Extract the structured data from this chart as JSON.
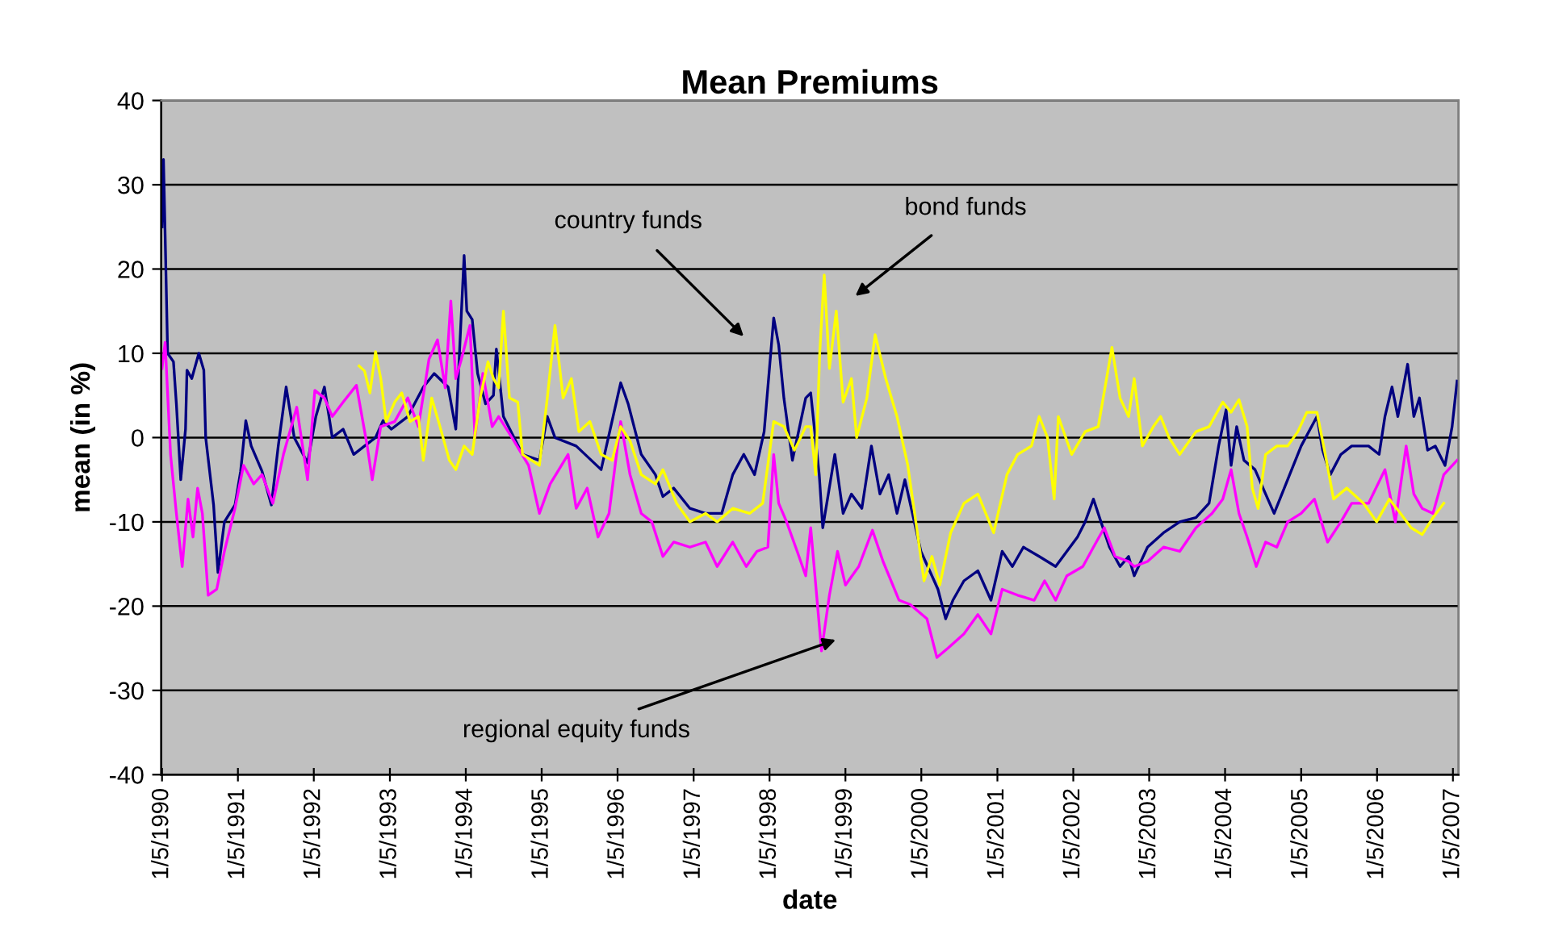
{
  "chart_data": {
    "type": "line",
    "title": "Mean Premiums",
    "xlabel": "date",
    "ylabel": "mean (in %)",
    "ylim": [
      -40,
      40
    ],
    "yticks": [
      -40,
      -30,
      -20,
      -10,
      0,
      10,
      20,
      30,
      40
    ],
    "xlim": [
      "1990-01-01",
      "2007-02-01"
    ],
    "xticks": [
      {
        "value": "1990-01-05",
        "label": "1/5/1990"
      },
      {
        "value": "1991-01-05",
        "label": "1/5/1991"
      },
      {
        "value": "1992-01-05",
        "label": "1/5/1992"
      },
      {
        "value": "1993-01-05",
        "label": "1/5/1993"
      },
      {
        "value": "1994-01-05",
        "label": "1/5/1994"
      },
      {
        "value": "1995-01-05",
        "label": "1/5/1995"
      },
      {
        "value": "1996-01-05",
        "label": "1/5/1996"
      },
      {
        "value": "1997-01-05",
        "label": "1/5/1997"
      },
      {
        "value": "1998-01-05",
        "label": "1/5/1998"
      },
      {
        "value": "1999-01-05",
        "label": "1/5/1999"
      },
      {
        "value": "2000-01-05",
        "label": "1/5/2000"
      },
      {
        "value": "2001-01-05",
        "label": "1/5/2001"
      },
      {
        "value": "2002-01-05",
        "label": "1/5/2002"
      },
      {
        "value": "2003-01-05",
        "label": "1/5/2003"
      },
      {
        "value": "2004-01-05",
        "label": "1/5/2004"
      },
      {
        "value": "2005-01-05",
        "label": "1/5/2005"
      },
      {
        "value": "2006-01-05",
        "label": "1/5/2006"
      },
      {
        "value": "2007-01-05",
        "label": "1/5/2007"
      }
    ],
    "grid": "y",
    "marker": "none",
    "line_style": "solid",
    "annotations": [
      "country funds",
      "bond funds",
      "regional equity funds"
    ],
    "series": [
      {
        "color": "#000080",
        "x": [
          "1990-01-05",
          "1990-01-12",
          "1990-01-20",
          "1990-02-01",
          "1990-03-01",
          "1990-03-15",
          "1990-04-05",
          "1990-04-28",
          "1990-05-05",
          "1990-05-28",
          "1990-07-01",
          "1990-07-25",
          "1990-08-03",
          "1990-09-10",
          "1990-10-01",
          "1990-11-01",
          "1990-12-22",
          "1991-01-18",
          "1991-02-12",
          "1991-03-10",
          "1991-05-01",
          "1991-06-15",
          "1991-07-18",
          "1991-08-25",
          "1991-10-03",
          "1991-12-06",
          "1992-01-15",
          "1992-02-25",
          "1992-04-03",
          "1992-05-25",
          "1992-07-15",
          "1992-09-05",
          "1992-10-28",
          "1992-12-03",
          "1993-01-12",
          "1993-04-01",
          "1993-06-15",
          "1993-08-06",
          "1993-10-12",
          "1993-11-18",
          "1993-12-28",
          "1994-01-10",
          "1994-02-05",
          "1994-03-03",
          "1994-04-10",
          "1994-05-18",
          "1994-06-01",
          "1994-07-05",
          "1994-10-05",
          "1994-12-25",
          "1995-02-01",
          "1995-03-10",
          "1995-06-20",
          "1995-10-18",
          "1996-01-20",
          "1996-02-25",
          "1996-04-28",
          "1996-07-05",
          "1996-08-10",
          "1996-10-01",
          "1996-12-18",
          "1997-03-03",
          "1997-05-20",
          "1997-07-12",
          "1997-09-03",
          "1997-10-25",
          "1997-12-10",
          "1998-01-25",
          "1998-02-18",
          "1998-03-15",
          "1998-04-25",
          "1998-06-28",
          "1998-07-22",
          "1998-09-01",
          "1998-09-18",
          "1998-11-15",
          "1998-12-25",
          "1999-02-03",
          "1999-03-25",
          "1999-05-10",
          "1999-06-20",
          "1999-08-01",
          "1999-09-10",
          "1999-10-18",
          "2000-01-03",
          "2000-02-25",
          "2000-03-25",
          "2000-05-01",
          "2000-06-05",
          "2000-07-28",
          "2000-10-03",
          "2000-12-05",
          "2001-01-28",
          "2001-03-18",
          "2001-05-10",
          "2001-07-25",
          "2001-10-12",
          "2002-01-25",
          "2002-03-03",
          "2002-04-12",
          "2002-05-18",
          "2002-06-28",
          "2002-08-18",
          "2002-09-28",
          "2002-10-25",
          "2002-12-28",
          "2003-03-15",
          "2003-06-01",
          "2003-08-18",
          "2003-10-20",
          "2003-12-05",
          "2004-01-10",
          "2004-02-03",
          "2004-03-01",
          "2004-04-05",
          "2004-05-28",
          "2004-07-18",
          "2004-08-28",
          "2004-11-01",
          "2005-01-05",
          "2005-03-22",
          "2005-04-18",
          "2005-05-25",
          "2005-07-15",
          "2005-09-05",
          "2005-11-25",
          "2006-01-15",
          "2006-02-12",
          "2006-03-18",
          "2006-04-15",
          "2006-06-01",
          "2006-07-01",
          "2006-07-28",
          "2006-09-05",
          "2006-10-12",
          "2006-11-28",
          "2007-01-01",
          "2007-01-25"
        ],
        "values": [
          25,
          33,
          24,
          10,
          9,
          4,
          -5,
          1,
          8,
          7,
          10,
          8,
          0,
          -8,
          -16,
          -10,
          -8,
          -4,
          2,
          -1,
          -4,
          -8,
          -1,
          6,
          0,
          -3,
          2.5,
          6,
          0,
          1,
          -2,
          -1,
          0,
          2,
          1,
          2.5,
          6,
          7.6,
          6,
          1,
          21.6,
          15,
          14,
          7.6,
          4,
          5,
          10.5,
          2.5,
          -2,
          -2.7,
          2.5,
          0,
          -1,
          -3.8,
          6.5,
          4,
          -2,
          -4.4,
          -7,
          -6,
          -8.4,
          -9,
          -9,
          -4.4,
          -2,
          -4.4,
          0.7,
          14.2,
          11,
          4.7,
          -2.7,
          4.7,
          5.3,
          -4.4,
          -10.7,
          -2,
          -9,
          -6.7,
          -8.4,
          -1,
          -6.7,
          -4.4,
          -9,
          -5,
          -13.5,
          -16.4,
          -18,
          -21.5,
          -19.3,
          -17,
          -15.8,
          -19.3,
          -13.5,
          -15.3,
          -13,
          -14.1,
          -15.3,
          -11.8,
          -10,
          -7.3,
          -10,
          -13,
          -15.3,
          -14.1,
          -16.4,
          -13,
          -11.3,
          -10,
          -9.5,
          -7.8,
          -1,
          3.3,
          -3.3,
          1.3,
          -2.7,
          -3.8,
          -6.7,
          -9,
          -5,
          -1,
          2.5,
          -1.5,
          -4.4,
          -2,
          -1,
          -1,
          -2,
          2.5,
          6,
          2.5,
          8.7,
          2.5,
          4.7,
          -1.5,
          -1,
          -3.3,
          1.3,
          6.7
        ]
      },
      {
        "color": "#ff00ff",
        "x": [
          "1990-01-05",
          "1990-01-20",
          "1990-02-15",
          "1990-03-15",
          "1990-04-12",
          "1990-05-10",
          "1990-06-03",
          "1990-06-25",
          "1990-07-18",
          "1990-08-15",
          "1990-09-25",
          "1990-11-01",
          "1990-12-22",
          "1991-02-01",
          "1991-03-22",
          "1991-05-01",
          "1991-06-22",
          "1991-08-12",
          "1991-10-15",
          "1991-12-06",
          "1992-01-10",
          "1992-02-25",
          "1992-04-03",
          "1992-05-25",
          "1992-07-28",
          "1992-09-18",
          "1992-10-12",
          "1992-11-22",
          "1993-01-28",
          "1993-04-01",
          "1993-05-22",
          "1993-07-12",
          "1993-08-22",
          "1993-09-28",
          "1993-10-25",
          "1993-11-18",
          "1993-12-15",
          "1994-01-25",
          "1994-02-18",
          "1994-03-28",
          "1994-05-12",
          "1994-06-12",
          "1994-08-15",
          "1994-11-03",
          "1994-12-25",
          "1995-02-15",
          "1995-05-12",
          "1995-06-20",
          "1995-08-12",
          "1995-10-03",
          "1995-11-25",
          "1996-01-20",
          "1996-03-05",
          "1996-04-28",
          "1996-06-18",
          "1996-08-10",
          "1996-10-01",
          "1996-12-18",
          "1997-03-03",
          "1997-04-28",
          "1997-07-12",
          "1997-09-15",
          "1997-11-05",
          "1997-12-28",
          "1998-01-25",
          "1998-02-18",
          "1998-03-28",
          "1998-05-18",
          "1998-06-28",
          "1998-07-22",
          "1998-09-12",
          "1998-10-20",
          "1998-11-28",
          "1999-01-05",
          "1999-03-10",
          "1999-05-15",
          "1999-07-05",
          "1999-09-20",
          "1999-11-12",
          "2000-02-01",
          "2000-03-20",
          "2000-05-12",
          "2000-07-28",
          "2000-10-03",
          "2000-12-05",
          "2001-01-28",
          "2001-04-12",
          "2001-07-01",
          "2001-08-20",
          "2001-10-12",
          "2001-12-05",
          "2002-02-20",
          "2002-04-12",
          "2002-06-03",
          "2002-07-25",
          "2002-09-28",
          "2002-10-25",
          "2002-12-28",
          "2003-03-15",
          "2003-06-01",
          "2003-08-18",
          "2003-11-03",
          "2003-12-25",
          "2004-02-03",
          "2004-03-12",
          "2004-04-20",
          "2004-06-03",
          "2004-07-18",
          "2004-09-10",
          "2004-11-01",
          "2005-01-05",
          "2005-03-10",
          "2005-05-12",
          "2005-07-15",
          "2005-09-05",
          "2005-11-25",
          "2006-02-12",
          "2006-04-03",
          "2006-05-25",
          "2006-07-01",
          "2006-08-10",
          "2006-10-01",
          "2006-11-22",
          "2007-01-25"
        ],
        "values": [
          8.2,
          11.3,
          -2,
          -9,
          -15.3,
          -7.3,
          -11.8,
          -6,
          -9,
          -18.7,
          -18,
          -13.5,
          -8.4,
          -3.3,
          -5.5,
          -4.4,
          -7.8,
          -2,
          3.6,
          -5,
          5.6,
          4.7,
          2.5,
          4.2,
          6.2,
          -1,
          -5,
          1.3,
          1.9,
          4.7,
          1.3,
          9.3,
          11.6,
          5.9,
          16.2,
          7,
          9.3,
          13.3,
          0,
          7.6,
          1.3,
          2.5,
          0,
          -3.3,
          -9,
          -5.5,
          -2,
          -8.4,
          -6,
          -11.8,
          -9,
          1.9,
          -4.4,
          -9,
          -10,
          -14.1,
          -12.4,
          -13,
          -12.4,
          -15.3,
          -12.4,
          -15.3,
          -13.5,
          -13,
          -2,
          -7.8,
          -10,
          -13.5,
          -16.4,
          -10.7,
          -25.3,
          -18.7,
          -13.5,
          -17.5,
          -15.3,
          -11,
          -14.7,
          -19.3,
          -19.8,
          -21.5,
          -26.1,
          -25,
          -23.3,
          -21,
          -23.3,
          -18,
          -18.7,
          -19.3,
          -17,
          -19.3,
          -16.4,
          -15.3,
          -13,
          -10.7,
          -14.1,
          -14.7,
          -15.3,
          -14.7,
          -13,
          -13.5,
          -10.7,
          -9,
          -7.3,
          -3.8,
          -9,
          -11.8,
          -15.3,
          -12.4,
          -13,
          -10,
          -9,
          -7.3,
          -12.4,
          -10,
          -7.8,
          -7.8,
          -3.8,
          -10,
          -1,
          -6.7,
          -8.4,
          -9,
          -4.4,
          -2.7
        ]
      },
      {
        "color": "#ffff00",
        "x": [
          "1992-08-10",
          "1992-09-05",
          "1992-10-01",
          "1992-10-28",
          "1992-11-22",
          "1992-12-18",
          "1993-01-28",
          "1993-03-03",
          "1993-04-12",
          "1993-05-22",
          "1993-06-15",
          "1993-07-25",
          "1993-09-03",
          "1993-10-18",
          "1993-11-18",
          "1993-12-28",
          "1994-02-05",
          "1994-03-15",
          "1994-04-22",
          "1994-05-18",
          "1994-06-12",
          "1994-07-05",
          "1994-08-03",
          "1994-09-12",
          "1994-10-05",
          "1994-12-25",
          "1995-02-01",
          "1995-03-10",
          "1995-04-18",
          "1995-05-28",
          "1995-07-03",
          "1995-08-25",
          "1995-10-18",
          "1995-12-10",
          "1996-01-20",
          "1996-03-05",
          "1996-04-28",
          "1996-07-05",
          "1996-08-10",
          "1996-10-15",
          "1996-12-18",
          "1997-03-03",
          "1997-04-28",
          "1997-07-12",
          "1997-10-01",
          "1997-12-03",
          "1998-01-25",
          "1998-03-15",
          "1998-05-05",
          "1998-06-28",
          "1998-07-22",
          "1998-08-15",
          "1998-09-03",
          "1998-09-25",
          "1998-10-20",
          "1998-11-22",
          "1998-12-25",
          "1999-02-03",
          "1999-02-28",
          "1999-04-18",
          "1999-05-28",
          "1999-07-18",
          "1999-09-10",
          "1999-11-01",
          "1999-12-20",
          "2000-01-18",
          "2000-02-25",
          "2000-04-03",
          "2000-05-25",
          "2000-07-28",
          "2000-10-03",
          "2000-12-18",
          "2001-02-20",
          "2001-04-12",
          "2001-06-18",
          "2001-07-25",
          "2001-09-03",
          "2001-10-05",
          "2001-10-25",
          "2001-12-28",
          "2002-03-03",
          "2002-05-05",
          "2002-07-10",
          "2002-08-18",
          "2002-09-28",
          "2002-10-25",
          "2002-12-03",
          "2003-01-25",
          "2003-03-01",
          "2003-04-10",
          "2003-06-01",
          "2003-08-18",
          "2003-10-20",
          "2003-12-25",
          "2004-02-03",
          "2004-03-12",
          "2004-04-20",
          "2004-05-15",
          "2004-06-12",
          "2004-07-18",
          "2004-09-10",
          "2004-11-01",
          "2004-12-20",
          "2005-02-01",
          "2005-03-22",
          "2005-05-01",
          "2005-06-10",
          "2005-08-12",
          "2005-11-01",
          "2006-01-03",
          "2006-03-05",
          "2006-04-28",
          "2006-06-18",
          "2006-08-10",
          "2006-10-01",
          "2006-11-22"
        ],
        "values": [
          8.5,
          7.9,
          5.3,
          10.2,
          7,
          1.9,
          4.2,
          5.3,
          1.9,
          2.5,
          -2.7,
          4.7,
          1.3,
          -2.7,
          -3.8,
          -1,
          -2,
          4.7,
          9,
          7,
          5.9,
          15,
          4.7,
          4.2,
          -2,
          -3.3,
          4.7,
          13.3,
          4.7,
          7,
          0.7,
          1.9,
          -2,
          -2.7,
          1.3,
          -0.4,
          -4.4,
          -5.5,
          -3.8,
          -7.8,
          -10,
          -9,
          -10,
          -8.4,
          -9,
          -7.8,
          1.9,
          1.3,
          -1.5,
          1.3,
          1.3,
          -4.4,
          9.9,
          19.3,
          8.2,
          15,
          4.2,
          7,
          0,
          4.7,
          12.2,
          7,
          2.5,
          -3.3,
          -11.8,
          -17,
          -14.1,
          -17.5,
          -11.3,
          -7.8,
          -6.7,
          -11.3,
          -4.4,
          -2,
          -1,
          2.5,
          0,
          -7.3,
          2.5,
          -2,
          0.7,
          1.3,
          10.7,
          4.7,
          2.5,
          7,
          -1,
          1.3,
          2.5,
          0,
          -2,
          0.7,
          1.3,
          4.2,
          3,
          4.5,
          1.3,
          -6,
          -8.4,
          -2,
          -1,
          -1,
          0.7,
          3,
          3,
          -2,
          -7.3,
          -6,
          -7.8,
          -10,
          -7.3,
          -9,
          -10.7,
          -11.5,
          -9.5,
          -7.8
        ]
      }
    ]
  }
}
